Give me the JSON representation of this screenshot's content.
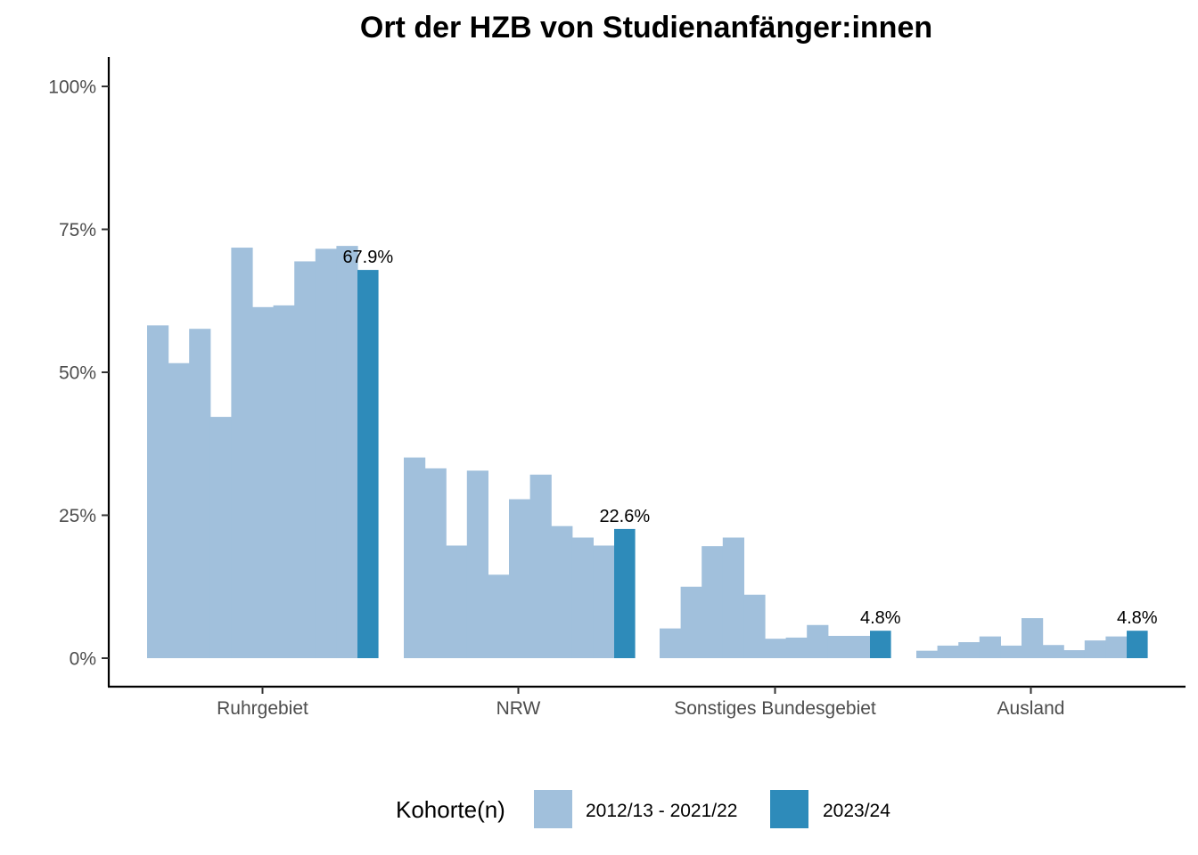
{
  "chart_data": {
    "type": "bar",
    "title": "Ort der HZB von Studienanfänger:innen",
    "xlabel": "",
    "ylabel": "",
    "ylim": [
      -0.05,
      1.05
    ],
    "y_ticks": [
      0,
      0.25,
      0.5,
      0.75,
      1.0
    ],
    "y_tick_labels": [
      "0%",
      "25%",
      "50%",
      "75%",
      "100%"
    ],
    "categories": [
      "Ruhrgebiet",
      "NRW",
      "Sonstiges Bundesgebiet",
      "Ausland"
    ],
    "grid": false,
    "legend": {
      "title": "Kohorte(n)",
      "position": "bottom",
      "entries": [
        {
          "label": "2012/13 - 2021/22",
          "color": "#a1c0dc"
        },
        {
          "label": "2023/24",
          "color": "#2e8bba"
        }
      ]
    },
    "series": [
      {
        "name": "2012/13 - 2021/22",
        "color": "#a1c0dc",
        "values_by_category": [
          [
            0.582,
            0.516,
            0.576,
            0.422,
            0.718,
            0.614,
            0.617,
            0.694,
            0.716,
            0.721
          ],
          [
            0.351,
            0.332,
            0.197,
            0.328,
            0.146,
            0.278,
            0.321,
            0.231,
            0.211,
            0.197
          ],
          [
            0.052,
            0.125,
            0.196,
            0.211,
            0.111,
            0.034,
            0.036,
            0.058,
            0.039,
            0.039
          ],
          [
            0.013,
            0.022,
            0.028,
            0.038,
            0.022,
            0.07,
            0.023,
            0.014,
            0.031,
            0.038
          ]
        ]
      },
      {
        "name": "2023/24",
        "color": "#2e8bba",
        "values": [
          0.679,
          0.226,
          0.048,
          0.048
        ],
        "data_labels": [
          "67.9%",
          "22.6%",
          "4.8%",
          "4.8%"
        ]
      }
    ]
  }
}
